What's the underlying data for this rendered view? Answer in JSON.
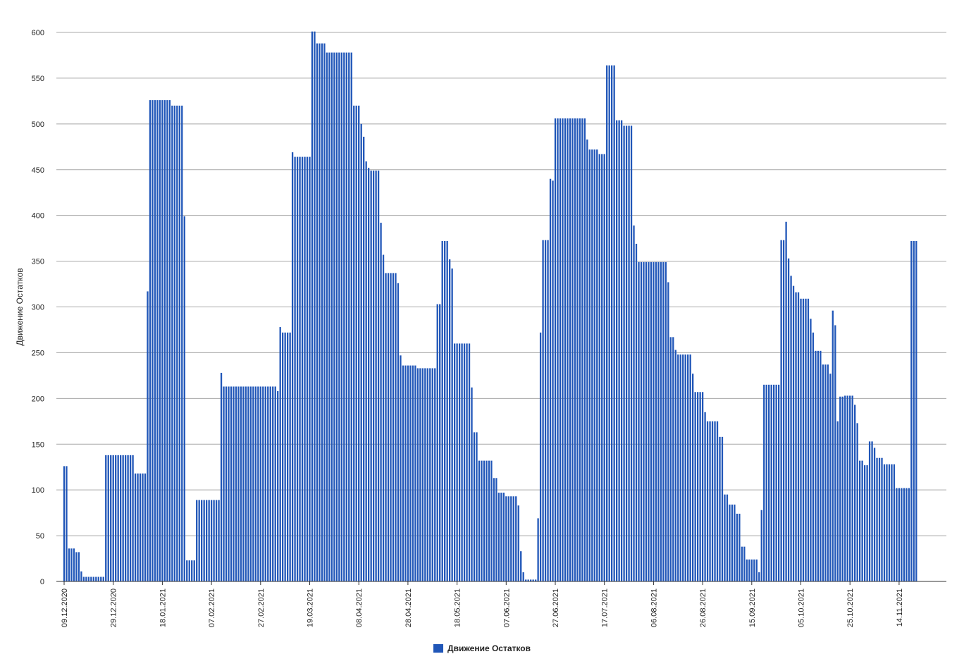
{
  "chart_data": {
    "type": "bar",
    "title": "",
    "xlabel": "",
    "ylabel": "Движение Остатков",
    "ylim": [
      0,
      600
    ],
    "yticks": [
      0,
      50,
      100,
      150,
      200,
      250,
      300,
      350,
      400,
      450,
      500,
      550,
      600
    ],
    "grid": true,
    "legend_position": "bottom-center",
    "color": "#2056b8",
    "x_tick_labels": [
      "09.12.2020",
      "29.12.2020",
      "18.01.2021",
      "07.02.2021",
      "27.02.2021",
      "19.03.2021",
      "08.04.2021",
      "28.04.2021",
      "18.05.2021",
      "07.06.2021",
      "27.06.2021",
      "17.07.2021",
      "06.08.2021",
      "26.08.2021",
      "15.09.2021",
      "05.10.2021",
      "25.10.2021",
      "14.11.2021"
    ],
    "x_tick_every": 20,
    "series": [
      {
        "name": "Движение Остатков",
        "values": [
          126,
          126,
          36,
          36,
          36,
          32,
          32,
          11,
          5,
          5,
          5,
          5,
          5,
          5,
          5,
          5,
          5,
          138,
          138,
          138,
          138,
          138,
          138,
          138,
          138,
          138,
          138,
          138,
          138,
          118,
          118,
          118,
          118,
          118,
          317,
          526,
          526,
          526,
          526,
          526,
          526,
          526,
          526,
          526,
          520,
          520,
          520,
          520,
          520,
          399,
          23,
          23,
          23,
          23,
          89,
          89,
          89,
          89,
          89,
          89,
          89,
          89,
          89,
          89,
          228,
          213,
          213,
          213,
          213,
          213,
          213,
          213,
          213,
          213,
          213,
          213,
          213,
          213,
          213,
          213,
          213,
          213,
          213,
          213,
          213,
          213,
          213,
          208,
          278,
          272,
          272,
          272,
          272,
          469,
          464,
          464,
          464,
          464,
          464,
          464,
          464,
          601,
          601,
          588,
          588,
          588,
          588,
          578,
          578,
          578,
          578,
          578,
          578,
          578,
          578,
          578,
          578,
          578,
          520,
          520,
          520,
          500,
          486,
          459,
          452,
          449,
          449,
          449,
          449,
          392,
          357,
          337,
          337,
          337,
          337,
          337,
          326,
          247,
          236,
          236,
          236,
          236,
          236,
          236,
          233,
          233,
          233,
          233,
          233,
          233,
          233,
          233,
          303,
          303,
          372,
          372,
          372,
          352,
          342,
          260,
          260,
          260,
          260,
          260,
          260,
          260,
          212,
          163,
          163,
          132,
          132,
          132,
          132,
          132,
          132,
          113,
          113,
          97,
          97,
          97,
          93,
          93,
          93,
          93,
          93,
          83,
          33,
          10,
          2,
          2,
          2,
          2,
          2,
          69,
          272,
          373,
          373,
          373,
          440,
          438,
          506,
          506,
          506,
          506,
          506,
          506,
          506,
          506,
          506,
          506,
          506,
          506,
          506,
          483,
          472,
          472,
          472,
          472,
          467,
          467,
          467,
          564,
          564,
          564,
          564,
          504,
          504,
          504,
          498,
          498,
          498,
          498,
          389,
          369,
          349,
          349,
          349,
          349,
          349,
          349,
          349,
          349,
          349,
          349,
          349,
          349,
          327,
          267,
          267,
          253,
          248,
          248,
          248,
          248,
          248,
          248,
          227,
          207,
          207,
          207,
          207,
          185,
          175,
          175,
          175,
          175,
          175,
          158,
          158,
          95,
          95,
          84,
          84,
          84,
          74,
          74,
          38,
          38,
          24,
          24,
          24,
          24,
          24,
          10,
          78,
          215,
          215,
          215,
          215,
          215,
          215,
          215,
          373,
          373,
          393,
          353,
          334,
          323,
          316,
          316,
          309,
          309,
          309,
          309,
          287,
          272,
          252,
          252,
          252,
          237,
          237,
          237,
          227,
          296,
          280,
          175,
          202,
          202,
          203,
          203,
          203,
          203,
          193,
          173,
          132,
          132,
          127,
          127,
          153,
          153,
          146,
          135,
          135,
          135,
          128,
          128,
          128,
          128,
          128,
          102,
          102,
          102,
          102,
          102,
          102,
          372,
          372,
          372
        ]
      }
    ]
  }
}
